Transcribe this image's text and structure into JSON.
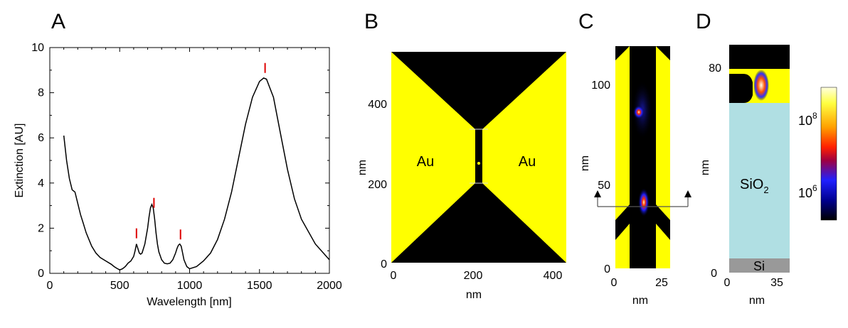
{
  "panels": {
    "a": {
      "label": "A"
    },
    "b": {
      "label": "B",
      "region_left": "Au",
      "region_right": "Au",
      "xlabel": "nm",
      "ylabel": "nm",
      "xticks": [
        "0",
        "200",
        "400"
      ],
      "yticks": [
        "0",
        "200",
        "400"
      ]
    },
    "c": {
      "label": "C",
      "xlabel": "nm",
      "ylabel": "nm",
      "xticks": [
        "0",
        "25"
      ],
      "yticks": [
        "0",
        "50",
        "100"
      ]
    },
    "d": {
      "label": "D",
      "xlabel": "nm",
      "ylabel": "nm",
      "xticks": [
        "0",
        "35"
      ],
      "yticks": [
        "0",
        "80"
      ],
      "layer_sio2": "SiO",
      "layer_sio2_sub": "2",
      "layer_si": "Si",
      "colorbar_hi_base": "10",
      "colorbar_hi_exp": "8",
      "colorbar_lo_base": "10",
      "colorbar_lo_exp": "6"
    }
  },
  "colors": {
    "gold": "#ffff00",
    "metal_bg": "#000000",
    "sio2": "#b0dfe3",
    "si": "#999999",
    "peak_marker": "#dd0000"
  },
  "chart_data": {
    "type": "line",
    "title": "",
    "xlabel": "Wavelength [nm]",
    "ylabel": "Extinction [AU]",
    "xlim": [
      0,
      2000
    ],
    "ylim": [
      0,
      10
    ],
    "xticks": [
      0,
      500,
      1000,
      1500,
      2000
    ],
    "yticks": [
      0,
      2,
      4,
      6,
      8,
      10
    ],
    "grid": false,
    "series": [
      {
        "x": [
          100,
          120,
          140,
          160,
          180,
          200,
          220,
          240,
          260,
          280,
          300,
          330,
          360,
          400,
          440,
          460,
          480,
          500,
          520,
          540,
          560,
          580,
          600,
          610,
          620,
          630,
          640,
          650,
          660,
          680,
          700,
          710,
          720,
          730,
          740,
          750,
          760,
          770,
          780,
          800,
          820,
          840,
          860,
          880,
          900,
          910,
          920,
          930,
          940,
          950,
          960,
          980,
          1000,
          1050,
          1100,
          1150,
          1200,
          1250,
          1300,
          1350,
          1400,
          1450,
          1500,
          1530,
          1550,
          1600,
          1650,
          1700,
          1750,
          1800,
          1900,
          2000
        ],
        "y": [
          6.1,
          5.0,
          4.2,
          3.7,
          3.6,
          3.1,
          2.6,
          2.2,
          1.8,
          1.5,
          1.2,
          0.9,
          0.7,
          0.55,
          0.4,
          0.3,
          0.22,
          0.15,
          0.2,
          0.3,
          0.45,
          0.55,
          0.75,
          1.0,
          1.3,
          1.1,
          0.9,
          0.85,
          0.9,
          1.3,
          2.0,
          2.5,
          2.9,
          3.05,
          2.9,
          2.4,
          1.8,
          1.3,
          0.95,
          0.6,
          0.45,
          0.42,
          0.45,
          0.6,
          0.9,
          1.1,
          1.25,
          1.3,
          1.2,
          0.9,
          0.6,
          0.3,
          0.2,
          0.3,
          0.55,
          0.9,
          1.5,
          2.4,
          3.6,
          5.1,
          6.6,
          7.8,
          8.5,
          8.65,
          8.6,
          7.8,
          6.2,
          4.6,
          3.3,
          2.4,
          1.3,
          0.6
        ]
      }
    ],
    "peak_markers_x": [
      620,
      745,
      935,
      1540
    ]
  }
}
